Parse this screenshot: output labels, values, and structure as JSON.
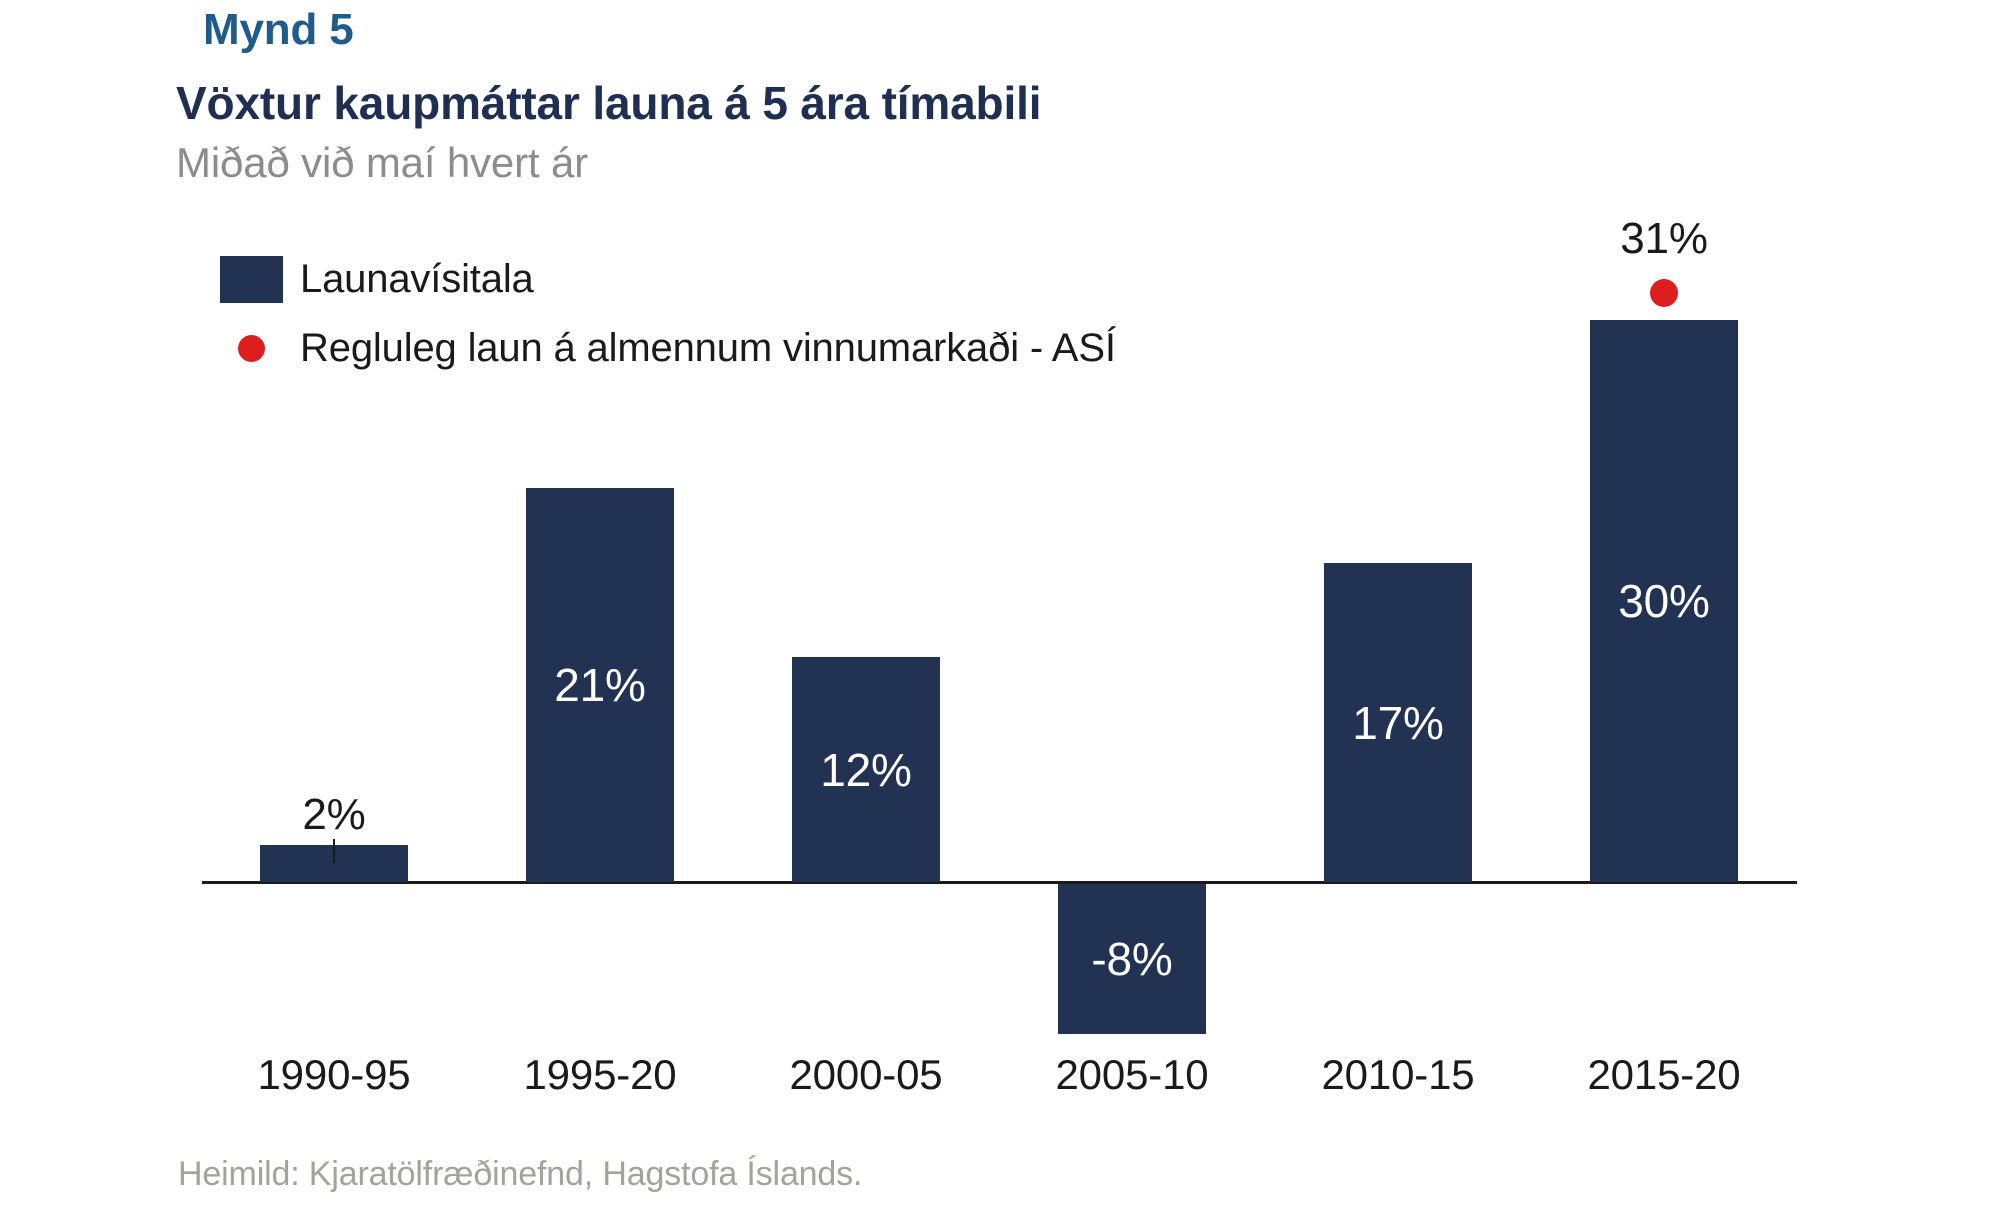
{
  "header": {
    "figure_number": "Mynd 5",
    "title": "Vöxtur kaupmáttar launa á 5 ára tímabili",
    "subtitle": "Miðað við maí hvert ár"
  },
  "legend": {
    "bar_series_label": "Launavísitala",
    "point_series_label": "Regluleg laun á almennum vinnumarkaði - ASÍ"
  },
  "colors": {
    "bar_navy": "#213253",
    "point_red": "#DC1E1E",
    "figure_number_blue": "#1F5C8B",
    "title_navy": "#1E2F52",
    "subtitle_gray": "#8C8C8C",
    "source_gray": "#A4A29B",
    "axis_black": "#1A1A1A"
  },
  "chart_data": {
    "type": "bar",
    "categories": [
      "1990-95",
      "1995-20",
      "2000-05",
      "2005-10",
      "2010-15",
      "2015-20"
    ],
    "series": [
      {
        "name": "Launavísitala",
        "render": "bar",
        "values": [
          2,
          21,
          12,
          -8,
          17,
          30
        ],
        "labels": [
          "2%",
          "21%",
          "12%",
          "-8%",
          "17%",
          "30%"
        ]
      },
      {
        "name": "Regluleg laun á almennum vinnumarkaði - ASÍ",
        "render": "point",
        "values": [
          null,
          null,
          null,
          null,
          null,
          31
        ],
        "labels": [
          null,
          null,
          null,
          null,
          null,
          "31%"
        ]
      }
    ],
    "value_unit": "%",
    "baseline": 0,
    "grid": false,
    "y_axis_shown": false,
    "legend_position": "top-left"
  },
  "source": "Heimild: Kjaratölfræðinefnd, Hagstofa Íslands."
}
